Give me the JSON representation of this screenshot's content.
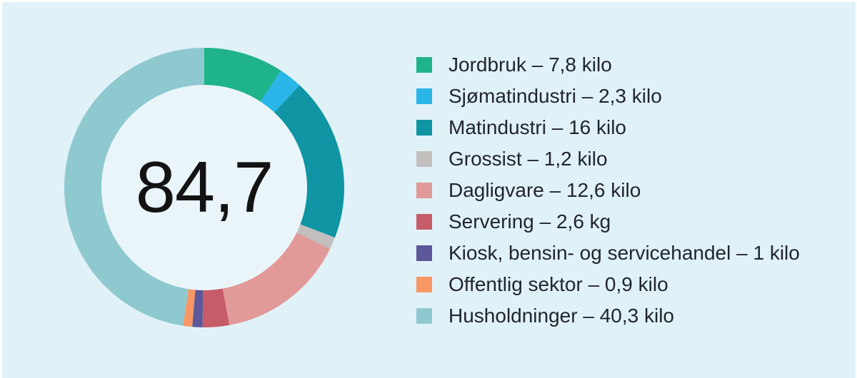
{
  "panel": {
    "background": "#e1f1f8",
    "hole_color": "#eaf5fa",
    "center_text_color": "#131313"
  },
  "chart_data": {
    "type": "pie",
    "subtype": "donut",
    "title": "",
    "center_label": "84,7",
    "total": 84.7,
    "start_angle_deg": 0,
    "direction": "clockwise",
    "legend_position": "right",
    "items": [
      {
        "label": "Jordbruk",
        "value": 7.8,
        "text": "Jordbruk – 7,8 kilo",
        "color": "#1eb389"
      },
      {
        "label": "Sjømatindustri",
        "value": 2.3,
        "text": "Sjømatindustri – 2,3 kilo",
        "color": "#29b5e8"
      },
      {
        "label": "Matindustri",
        "value": 16,
        "text": "Matindustri – 16 kilo",
        "color": "#0f95a3"
      },
      {
        "label": "Grossist",
        "value": 1.2,
        "text": "Grossist – 1,2 kilo",
        "color": "#c2bfbe"
      },
      {
        "label": "Dagligvare",
        "value": 12.6,
        "text": "Dagligvare – 12,6 kilo",
        "color": "#e29a98"
      },
      {
        "label": "Servering",
        "value": 2.6,
        "text": "Servering – 2,6 kg",
        "color": "#c75c69"
      },
      {
        "label": "Kiosk, bensin- og servicehandel",
        "value": 1,
        "text": "Kiosk, bensin- og servicehandel – 1 kilo",
        "color": "#5c5899"
      },
      {
        "label": "Offentlig sektor",
        "value": 0.9,
        "text": "Offentlig sektor – 0,9 kilo",
        "color": "#f79764"
      },
      {
        "label": "Husholdninger",
        "value": 40.3,
        "text": "Husholdninger – 40,3 kilo",
        "color": "#8fc9d0"
      }
    ]
  }
}
